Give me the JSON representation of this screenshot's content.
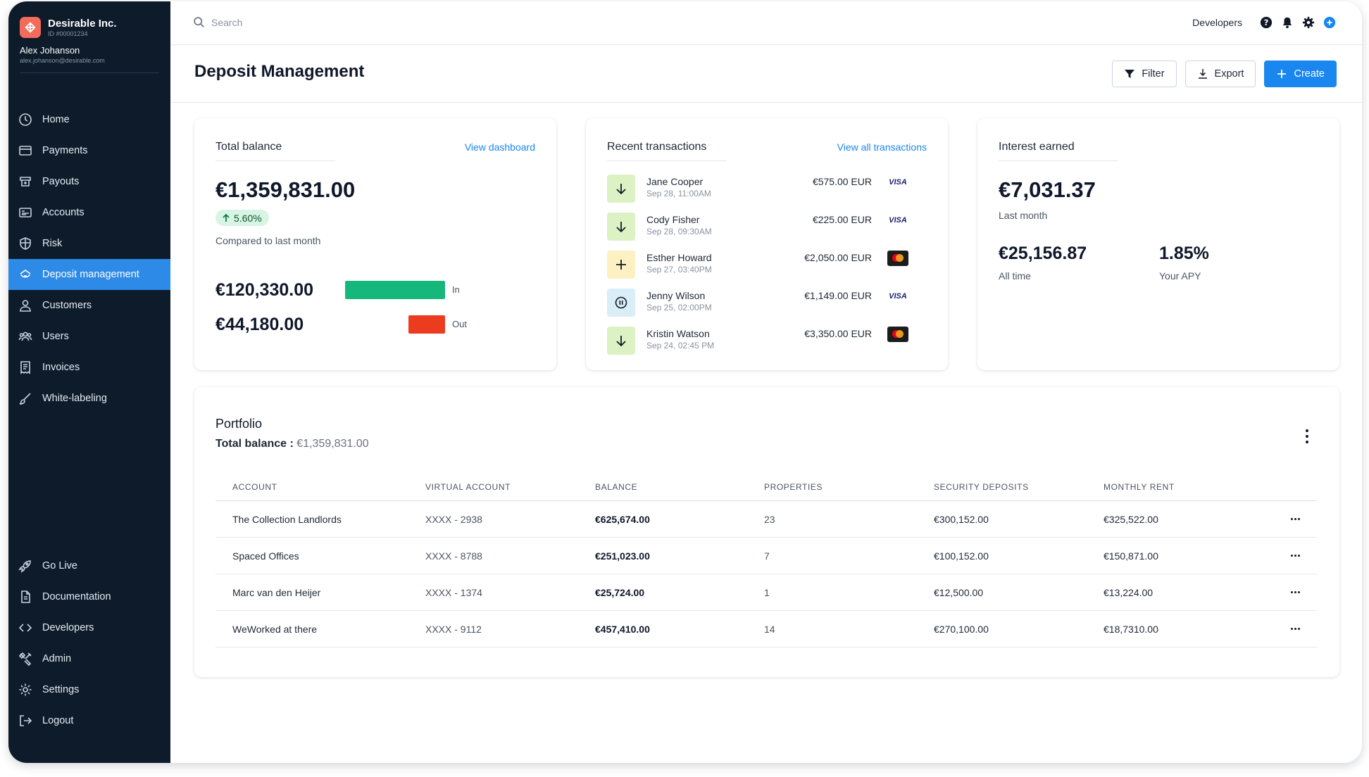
{
  "org": {
    "name": "Desirable Inc.",
    "id": "ID #00001234"
  },
  "user": {
    "name": "Alex Johanson",
    "email": "alex.johanson@desirable.com"
  },
  "nav_top": [
    {
      "label": "Home",
      "icon": "home-icon"
    },
    {
      "label": "Payments",
      "icon": "credit-card-icon"
    },
    {
      "label": "Payouts",
      "icon": "payout-icon"
    },
    {
      "label": "Accounts",
      "icon": "accounts-icon"
    },
    {
      "label": "Risk",
      "icon": "shield-icon"
    },
    {
      "label": "Deposit management",
      "icon": "deposit-icon",
      "active": true
    },
    {
      "label": "Customers",
      "icon": "user-icon"
    },
    {
      "label": "Users",
      "icon": "users-icon"
    },
    {
      "label": "Invoices",
      "icon": "invoice-icon"
    },
    {
      "label": "White-labeling",
      "icon": "brush-icon"
    }
  ],
  "nav_bottom": [
    {
      "label": "Go Live",
      "icon": "rocket-icon"
    },
    {
      "label": "Documentation",
      "icon": "document-icon"
    },
    {
      "label": "Developers",
      "icon": "code-icon"
    },
    {
      "label": "Admin",
      "icon": "tools-icon"
    },
    {
      "label": "Settings",
      "icon": "gear-icon"
    },
    {
      "label": "Logout",
      "icon": "logout-icon"
    }
  ],
  "topbar": {
    "search_placeholder": "Search",
    "developers_label": "Developers"
  },
  "page": {
    "title": "Deposit Management",
    "filter_label": "Filter",
    "export_label": "Export",
    "create_label": "Create"
  },
  "balance_card": {
    "title": "Total balance",
    "link": "View dashboard",
    "amount": "€1,359,831.00",
    "change": "5.60%",
    "compare": "Compared to last month",
    "in_amount": "€120,330.00",
    "in_label": "In",
    "in_value": 120330,
    "out_amount": "€44,180.00",
    "out_label": "Out",
    "out_value": 44180,
    "colors": {
      "in": "#16b77a",
      "out": "#ec3b1e"
    }
  },
  "transactions_card": {
    "title": "Recent transactions",
    "link": "View all transactions",
    "items": [
      {
        "name": "Jane Cooper",
        "date": "Sep 28, 11:00AM",
        "amount": "€575.00 EUR",
        "card": "visa",
        "kind": "arrow-down"
      },
      {
        "name": "Cody Fisher",
        "date": "Sep 28, 09:30AM",
        "amount": "€225.00 EUR",
        "card": "visa",
        "kind": "arrow-down"
      },
      {
        "name": "Esther Howard",
        "date": "Sep 27, 03:40PM",
        "amount": "€2,050.00 EUR",
        "card": "mastercard",
        "kind": "plus"
      },
      {
        "name": "Jenny Wilson",
        "date": "Sep 25, 02:00PM",
        "amount": "€1,149.00 EUR",
        "card": "visa",
        "kind": "pause"
      },
      {
        "name": "Kristin Watson",
        "date": "Sep 24, 02:45 PM",
        "amount": "€3,350.00 EUR",
        "card": "mastercard",
        "kind": "arrow-down"
      }
    ],
    "visa_text": "VISA"
  },
  "interest_card": {
    "title": "Interest earned",
    "amount": "€7,031.37",
    "amount_label": "Last month",
    "all_time": "€25,156.87",
    "all_time_label": "All time",
    "apy": "1.85%",
    "apy_label": "Your APY"
  },
  "portfolio": {
    "title": "Portfolio",
    "balance_label": "Total balance :",
    "balance_value": "€1,359,831.00",
    "columns": [
      "ACCOUNT",
      "VIRTUAL ACCOUNT",
      "BALANCE",
      "PROPERTIES",
      "SECURITY DEPOSITS",
      "MONTHLY RENT"
    ],
    "rows": [
      [
        "The Collection Landlords",
        "XXXX - 2938",
        "€625,674.00",
        "23",
        "€300,152.00",
        "€325,522.00"
      ],
      [
        "Spaced Offices",
        "XXXX - 8788",
        "€251,023.00",
        "7",
        "€100,152.00",
        "€150,871.00"
      ],
      [
        "Marc van den Heijer",
        "XXXX - 1374",
        "€25,724.00",
        "1",
        "€12,500.00",
        "€13,224.00"
      ],
      [
        "WeWorked at there",
        "XXXX - 9112",
        "€457,410.00",
        "14",
        "€270,100.00",
        "€18,7310.00"
      ]
    ]
  }
}
